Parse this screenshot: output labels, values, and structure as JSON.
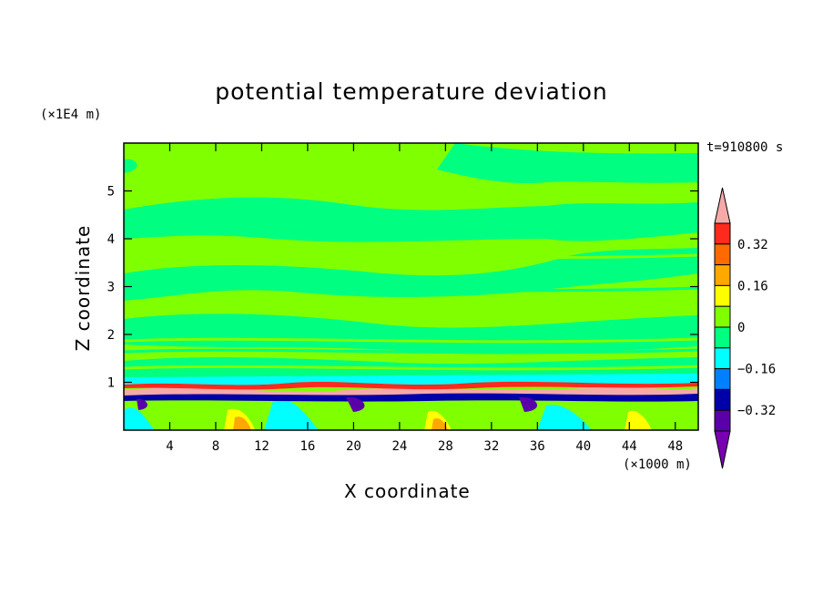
{
  "chart_data": {
    "type": "heatmap",
    "title": "potential temperature deviation",
    "xlabel": "X coordinate",
    "ylabel": "Z coordinate",
    "x_unit": "(×1000 m)",
    "y_unit": "(×1E4 m)",
    "time_label": "t=910800 s",
    "xlim": [
      0,
      50
    ],
    "ylim": [
      0,
      6
    ],
    "x_ticks": [
      4,
      8,
      12,
      16,
      20,
      24,
      28,
      32,
      36,
      40,
      44,
      48
    ],
    "y_ticks": [
      1,
      2,
      3,
      4,
      5
    ],
    "colorbar": {
      "levels": [
        -0.4,
        -0.32,
        -0.24,
        -0.16,
        -0.08,
        0,
        0.08,
        0.16,
        0.24,
        0.32,
        0.4
      ],
      "labeled_ticks": [
        "0.32",
        "0.16",
        "0",
        "−0.16",
        "−0.32"
      ],
      "labeled_values": [
        0.32,
        0.16,
        0,
        -0.16,
        -0.32
      ],
      "colors_top_to_bottom": [
        "#f7a9a8",
        "#ff2a1e",
        "#ff6a00",
        "#ffa800",
        "#ffff00",
        "#80ff00",
        "#00ff80",
        "#00ffff",
        "#0080ff",
        "#0000a8",
        "#5a00a8",
        "#7800b0"
      ],
      "extend": "both"
    },
    "description_bands": [
      {
        "z_range": [
          1.5,
          6
        ],
        "values": [
          0,
          0.08
        ],
        "pattern": "alternating green / light-green horizontal bands"
      },
      {
        "z_range": [
          0.6,
          1.1
        ],
        "values": [
          -0.4,
          0.4
        ],
        "pattern": "strong positive and negative deviations"
      },
      {
        "z_range": [
          0,
          0.6
        ],
        "values": [
          -0.24,
          0.32
        ],
        "pattern": "vertical plumes of positive deviation"
      }
    ]
  }
}
